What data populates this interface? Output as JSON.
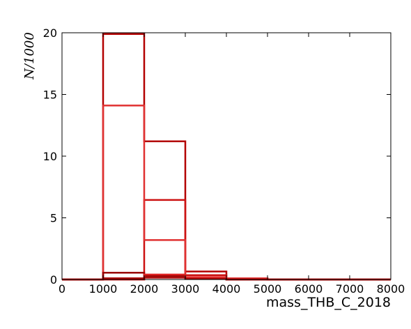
{
  "chart_data": {
    "type": "bar",
    "histtype": "step",
    "xlabel": "mass_THB_C_2018",
    "ylabel": "$N/1000$",
    "ylabel_display": "N/1000",
    "xlim": [
      0,
      8000
    ],
    "ylim": [
      0,
      20
    ],
    "xticks": [
      "0",
      "1000",
      "2000",
      "3000",
      "4000",
      "5000",
      "6000",
      "7000",
      "8000"
    ],
    "yticks": [
      "0",
      "5",
      "10",
      "15",
      "20"
    ],
    "bin_edges": [
      0,
      1000,
      2000,
      3000,
      4000,
      5000,
      6000,
      7000,
      8000
    ],
    "grid": false,
    "legend": "none",
    "series": [
      {
        "color": "#b30000",
        "values": [
          0,
          19.9,
          11.2,
          0.65,
          0.1,
          0,
          0,
          0
        ]
      },
      {
        "color": "#cc1111",
        "values": [
          0,
          0,
          6.45,
          0.35,
          0.05,
          0,
          0,
          0
        ]
      },
      {
        "color": "#e03030",
        "values": [
          0,
          14.1,
          3.2,
          0.2,
          0.1,
          0,
          0,
          0
        ]
      },
      {
        "color": "#990000",
        "values": [
          0,
          0.55,
          0.3,
          0.1,
          0,
          0,
          0,
          0
        ]
      },
      {
        "color": "#dd2222",
        "values": [
          0,
          0,
          0.4,
          0.1,
          0,
          0,
          0,
          0
        ]
      },
      {
        "color": "#aa0000",
        "values": [
          0,
          0.1,
          0.15,
          0.05,
          0,
          0,
          0,
          0
        ]
      }
    ]
  }
}
